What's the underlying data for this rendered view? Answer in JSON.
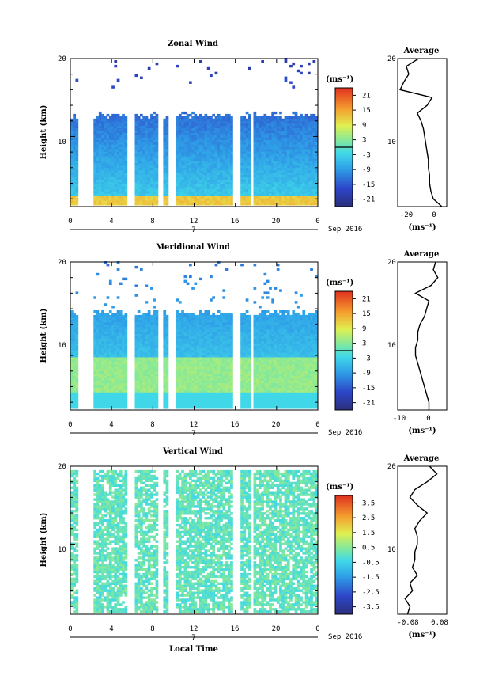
{
  "figure": {
    "xlabel": "Local Time",
    "date_label": "Sep 2016",
    "day_label": "7",
    "x_ticks": [
      "0",
      "4",
      "8",
      "12",
      "16",
      "20",
      "0"
    ],
    "y_ticks": [
      "10",
      "20"
    ],
    "ylabel": "Height (km)",
    "unit_label": "(ms⁻¹)",
    "average_title": "Average"
  },
  "chart_data": [
    {
      "type": "heatmap",
      "title": "Zonal Wind",
      "ylabel": "Height (km)",
      "xlim": [
        0,
        24
      ],
      "ylim": [
        1,
        20
      ],
      "colorbar": {
        "label": "(ms⁻¹)",
        "ticks": [
          "21",
          "15",
          "9",
          "3",
          "-3",
          "-9",
          "-15",
          "-21"
        ],
        "range": [
          -24,
          24
        ]
      },
      "gaps_hours": [
        [
          0.8,
          2.3
        ],
        [
          5.5,
          6.3
        ],
        [
          8.6,
          9.0
        ],
        [
          9.6,
          10.2
        ],
        [
          15.8,
          16.4
        ],
        [
          17.4,
          17.8
        ]
      ],
      "data_top_km": 12.2,
      "profile": {
        "title": "Average",
        "xlabel": "(ms⁻¹)",
        "xticks": [
          "-20",
          "0"
        ],
        "xlim": [
          -30,
          10
        ],
        "heights_km": [
          1,
          2,
          3,
          4,
          5,
          6,
          7,
          8,
          9,
          10,
          11,
          12,
          13,
          14,
          15,
          16,
          17,
          18,
          19,
          20
        ],
        "values": [
          6,
          -1,
          -3,
          -4,
          -4,
          -5,
          -5,
          -6,
          -7,
          -8,
          -9,
          -11,
          -14,
          -6,
          -2,
          -28,
          -25,
          -21,
          -23,
          -13
        ]
      }
    },
    {
      "type": "heatmap",
      "title": "Meridional Wind",
      "ylabel": "Height (km)",
      "xlim": [
        0,
        24
      ],
      "ylim": [
        1,
        20
      ],
      "colorbar": {
        "label": "(ms⁻¹)",
        "ticks": [
          "21",
          "15",
          "9",
          "3",
          "-3",
          "-9",
          "-15",
          "-21"
        ],
        "range": [
          -24,
          24
        ]
      },
      "gaps_hours": [
        [
          0.8,
          2.3
        ],
        [
          5.5,
          6.3
        ],
        [
          8.6,
          9.0
        ],
        [
          9.6,
          10.2
        ],
        [
          15.8,
          16.4
        ],
        [
          17.4,
          17.8
        ]
      ],
      "data_top_km": 13.0,
      "profile": {
        "title": "Average",
        "xlabel": "(ms⁻¹)",
        "xticks": [
          "-10",
          "0"
        ],
        "xlim": [
          -14,
          8
        ],
        "heights_km": [
          1,
          2,
          3,
          4,
          5,
          6,
          7,
          8,
          9,
          10,
          11,
          12,
          13,
          14,
          15,
          16,
          17,
          18,
          19,
          20
        ],
        "values": [
          0,
          0,
          -1,
          -2,
          -3,
          -4,
          -5,
          -6,
          -6,
          -5,
          -5,
          -4,
          -2,
          -1,
          0,
          -6,
          1,
          4,
          2,
          3
        ]
      }
    },
    {
      "type": "heatmap",
      "title": "Vertical Wind",
      "ylabel": "Height (km)",
      "xlim": [
        0,
        24
      ],
      "ylim": [
        1,
        20
      ],
      "colorbar": {
        "label": "(ms⁻¹)",
        "ticks": [
          "3.5",
          "2.5",
          "1.5",
          "0.5",
          "-0.5",
          "-1.5",
          "-2.5",
          "-3.5"
        ],
        "range": [
          -4,
          4
        ]
      },
      "gaps_hours": [
        [
          0.8,
          2.3
        ],
        [
          5.5,
          6.3
        ],
        [
          8.6,
          9.0
        ],
        [
          9.6,
          10.2
        ],
        [
          15.8,
          16.4
        ],
        [
          17.4,
          17.8
        ]
      ],
      "data_top_km": 19.5,
      "profile": {
        "title": "Average",
        "xlabel": "(ms⁻¹)",
        "xticks": [
          "-0.08",
          "0.08"
        ],
        "xlim": [
          -0.1,
          0.1
        ],
        "heights_km": [
          1,
          2,
          3,
          4,
          5,
          6,
          7,
          8,
          9,
          10,
          11,
          12,
          13,
          14,
          15,
          16,
          17,
          18,
          19,
          20
        ],
        "values": [
          -0.06,
          -0.05,
          -0.07,
          -0.04,
          -0.05,
          -0.02,
          -0.04,
          -0.03,
          -0.03,
          -0.02,
          -0.02,
          -0.03,
          -0.01,
          0.02,
          -0.02,
          -0.05,
          -0.03,
          0.02,
          0.06,
          0.03
        ]
      }
    }
  ]
}
